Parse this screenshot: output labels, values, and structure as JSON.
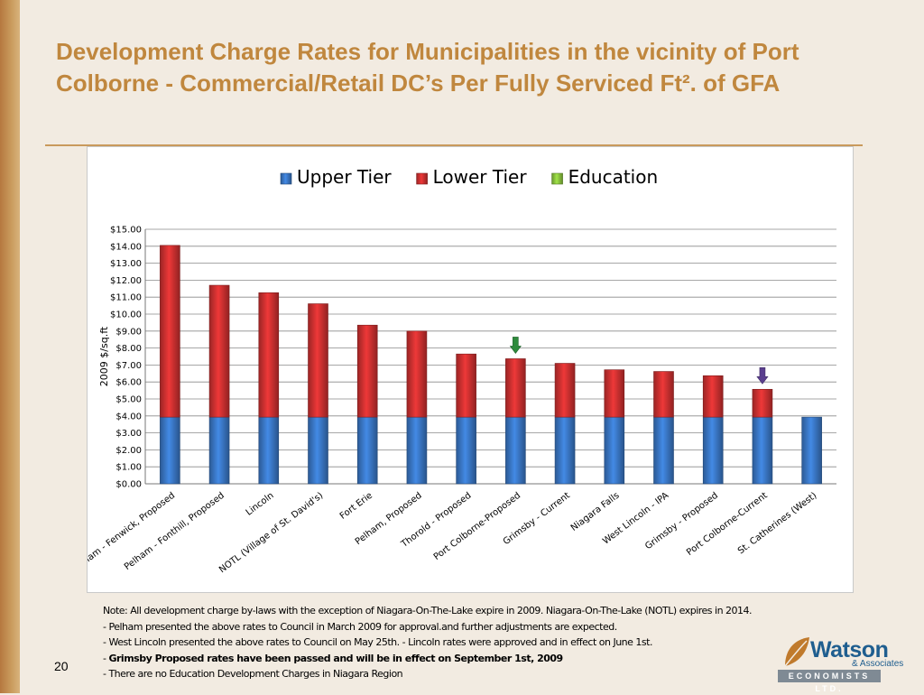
{
  "slide": {
    "title_line1": "Development Charge Rates for Municipalities in the vicinity of Port",
    "title_line2": "Colborne - Commercial/Retail DC’s Per Fully Serviced Ft². of GFA",
    "page_number": "20"
  },
  "notes": {
    "line1": "Note: All development charge by-laws with the exception of Niagara-On-The-Lake expire in 2009.     Niagara-On-The-Lake (NOTL) expires in 2014.",
    "line2": "- Pelham  presented the above rates to Council in March 2009  for approval.and further adjustments are expected.",
    "line3": "- West Lincoln   presented the above rates to Council on May 25th.    - Lincoln rates were approved and in effect on June 1st.",
    "line4_prefix": "- ",
    "line4_bold": "Grimsby Proposed rates have been passed and will be in effect on September 1st, 2009",
    "line5": "- There are no Education Development Charges in Niagara Region"
  },
  "logo": {
    "name": "Watson",
    "sub": "& Associates",
    "band": "ECONOMISTS LTD."
  },
  "chart_data": {
    "type": "bar",
    "stacked": true,
    "categories": [
      "Pelham - Fenwick, Proposed",
      "Pelham - Fonthill, Proposed",
      "Lincoln",
      "NOTL (Village of St. David's)",
      "Fort Erie",
      "Pelham, Proposed",
      "Thorold - Proposed",
      "Port Colborne-Proposed",
      "Grimsby - Current",
      "Niagara Falls",
      "West Lincoln - IPA",
      "Grimsby - Proposed",
      "Port Colborne-Current",
      "St. Catherines (West)"
    ],
    "series": [
      {
        "name": "Upper Tier",
        "color": "#3a78c7",
        "values": [
          3.93,
          3.93,
          3.93,
          3.93,
          3.93,
          3.93,
          3.93,
          3.93,
          3.93,
          3.93,
          3.93,
          3.93,
          3.93,
          3.93
        ]
      },
      {
        "name": "Lower Tier",
        "color": "#cf3131",
        "values": [
          10.12,
          7.77,
          7.33,
          6.68,
          5.42,
          5.07,
          3.72,
          3.44,
          3.17,
          2.79,
          2.69,
          2.44,
          1.64,
          0
        ]
      },
      {
        "name": "Education",
        "color": "#8cc63f",
        "values": [
          0,
          0,
          0,
          0,
          0,
          0,
          0,
          0,
          0,
          0,
          0,
          0,
          0,
          0
        ]
      }
    ],
    "ylabel": "2009 $/sq.ft",
    "xlabel": "",
    "ylim": [
      0,
      15
    ],
    "yticks": [
      "$0.00",
      "$1.00",
      "$2.00",
      "$3.00",
      "$4.00",
      "$5.00",
      "$6.00",
      "$7.00",
      "$8.00",
      "$9.00",
      "$10.00",
      "$11.00",
      "$12.00",
      "$13.00",
      "$14.00",
      "$15.00"
    ],
    "grid": true,
    "legend_position": "top",
    "markers": [
      {
        "category": "Port Colborne-Proposed",
        "icon": "down-arrow-icon",
        "color": "#2e8b3d"
      },
      {
        "category": "Port Colborne-Current",
        "icon": "down-arrow-icon",
        "color": "#5b3f8f"
      }
    ]
  }
}
